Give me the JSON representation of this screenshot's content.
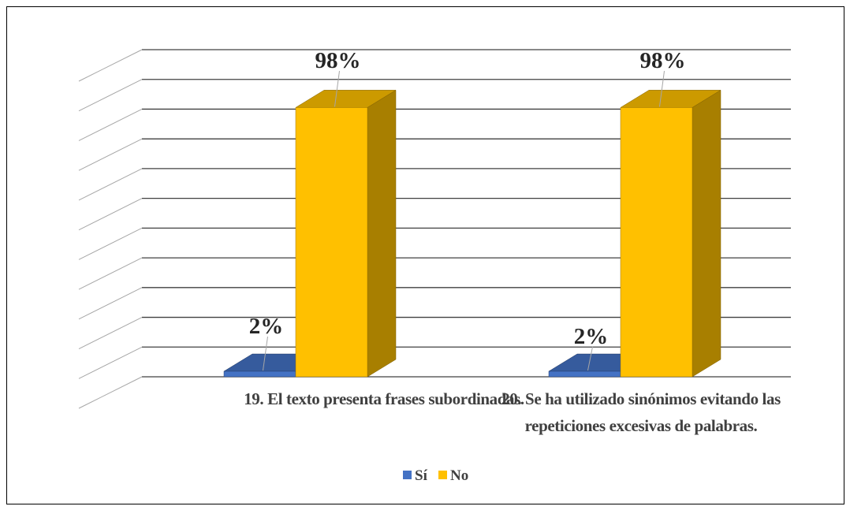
{
  "chart_data": {
    "type": "bar",
    "style": "3d-clustered-column",
    "categories": [
      "19. El texto presenta frases subordinadas.",
      "20. Se ha utilizado sinónimos evitando las repeticiones excesivas de palabras."
    ],
    "category_lines": [
      [
        "19. El texto presenta frases subordinadas."
      ],
      [
        "20. Se ha utilizado sinónimos evitando las",
        "repeticiones excesivas de palabras."
      ]
    ],
    "series": [
      {
        "name": "Sí",
        "values": [
          2,
          2
        ],
        "labels": [
          "2%",
          "2%"
        ],
        "color": "#4472C4"
      },
      {
        "name": "No",
        "values": [
          98,
          98
        ],
        "labels": [
          "98%",
          "98%"
        ],
        "color": "#FFC000"
      }
    ],
    "ylim": [
      0,
      110
    ],
    "grid": true,
    "legend": "bottom",
    "unit": "%"
  }
}
